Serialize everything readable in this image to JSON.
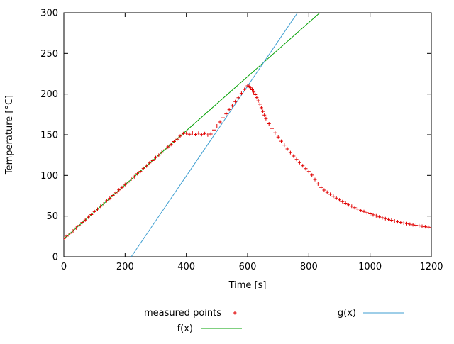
{
  "chart_data": {
    "type": "scatter",
    "title": "",
    "xlabel": "Time [s]",
    "ylabel": "Temperature [°C]",
    "xlim": [
      0,
      1200
    ],
    "ylim": [
      0,
      300
    ],
    "xticks": [
      0,
      200,
      400,
      600,
      800,
      1000,
      1200
    ],
    "yticks": [
      0,
      50,
      100,
      150,
      200,
      250,
      300
    ],
    "grid": false,
    "legend_position": "below-plot",
    "background": "#ffffff",
    "series": [
      {
        "id": "measured-points",
        "name": "measured points",
        "style": "points",
        "marker": "plus",
        "color": "#e10000",
        "x": [
          0,
          10,
          20,
          30,
          40,
          50,
          60,
          70,
          80,
          90,
          100,
          110,
          120,
          130,
          140,
          150,
          160,
          170,
          180,
          190,
          200,
          210,
          220,
          230,
          240,
          250,
          260,
          270,
          280,
          290,
          300,
          310,
          320,
          330,
          340,
          350,
          360,
          370,
          380,
          390,
          400,
          410,
          420,
          430,
          440,
          450,
          460,
          470,
          480,
          490,
          500,
          510,
          520,
          530,
          540,
          550,
          560,
          570,
          580,
          590,
          600,
          605,
          610,
          615,
          620,
          625,
          630,
          635,
          640,
          645,
          650,
          655,
          660,
          670,
          680,
          690,
          700,
          710,
          720,
          730,
          740,
          750,
          760,
          770,
          780,
          790,
          800,
          810,
          820,
          830,
          840,
          850,
          860,
          870,
          880,
          890,
          900,
          910,
          920,
          930,
          940,
          950,
          960,
          970,
          980,
          990,
          1000,
          1010,
          1020,
          1030,
          1040,
          1050,
          1060,
          1070,
          1080,
          1090,
          1100,
          1110,
          1120,
          1130,
          1140,
          1150,
          1160,
          1170,
          1180,
          1190,
          1200
        ],
        "y": [
          22.3,
          25.4,
          28.9,
          31.8,
          35.4,
          38.5,
          42.2,
          45.1,
          48.8,
          51.9,
          55.5,
          58.4,
          62.1,
          65.0,
          68.8,
          71.9,
          75.4,
          78.6,
          82.2,
          85.1,
          88.9,
          91.8,
          95.5,
          98.4,
          102.1,
          105.0,
          108.7,
          111.6,
          115.3,
          118.2,
          122.0,
          124.8,
          128.5,
          131.4,
          135.1,
          138.0,
          141.7,
          144.6,
          148.3,
          151.5,
          151.8,
          150.6,
          152.2,
          150.4,
          151.9,
          150.2,
          151.5,
          149.8,
          150.9,
          155.8,
          160.9,
          165.7,
          170.8,
          175.6,
          180.9,
          185.7,
          190.8,
          195.6,
          200.9,
          205.8,
          210.2,
          209.5,
          207.8,
          205.4,
          202.6,
          199.3,
          195.7,
          191.8,
          187.6,
          183.2,
          178.7,
          174.2,
          169.8,
          163.5,
          157.8,
          152.4,
          147.2,
          142.1,
          137.3,
          132.6,
          128.1,
          123.8,
          119.7,
          115.7,
          111.9,
          108.3,
          104.8,
          100.4,
          95.0,
          89.5,
          85.2,
          82.0,
          79.3,
          76.8,
          74.4,
          72.1,
          69.9,
          67.8,
          65.8,
          63.9,
          62.1,
          60.4,
          58.7,
          57.1,
          55.6,
          54.2,
          52.8,
          51.5,
          50.3,
          49.1,
          48.0,
          46.9,
          45.9,
          44.9,
          44.0,
          43.1,
          42.3,
          41.5,
          40.7,
          40.0,
          39.3,
          38.7,
          38.1,
          37.5,
          37.0,
          36.5,
          36.0
        ]
      },
      {
        "id": "f",
        "name": "f(x)",
        "style": "line",
        "color": "#00a000",
        "x": [
          0,
          836
        ],
        "y": [
          22,
          300
        ]
      },
      {
        "id": "g",
        "name": "g(x)",
        "style": "line",
        "color": "#3c9dd0",
        "x": [
          220,
          763
        ],
        "y": [
          0,
          300
        ]
      }
    ]
  }
}
